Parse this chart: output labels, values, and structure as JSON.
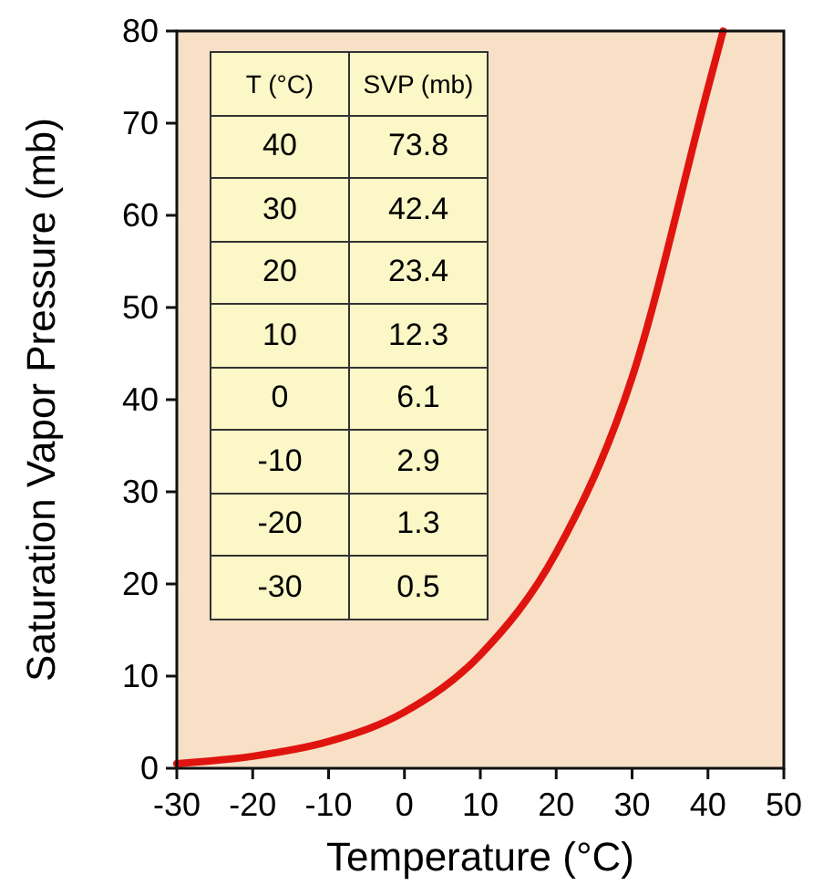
{
  "chart_data": {
    "type": "line",
    "xlabel": "Temperature (°C)",
    "ylabel": "Saturation Vapor Pressure (mb)",
    "series": [
      {
        "color": "#e0140f",
        "x": [
          -30,
          -20,
          -10,
          0,
          10,
          20,
          30,
          40,
          42
        ],
        "values": [
          0.5,
          1.3,
          2.9,
          6.1,
          12.3,
          23.4,
          42.4,
          73.8,
          80
        ]
      }
    ],
    "annotations": [
      "T (°C)",
      "SVP (mb)",
      "40",
      "73.8",
      "30",
      "42.4",
      "20",
      "23.4",
      "10",
      "12.3",
      "0",
      "6.1",
      "-10",
      "2.9",
      "-20",
      "1.3",
      "-30",
      "0.5"
    ],
    "xlim": [
      -30,
      50
    ],
    "ylim": [
      0,
      80
    ],
    "xticks": [
      -30,
      -20,
      -10,
      0,
      10,
      20,
      30,
      40,
      50
    ],
    "yticks": [
      0,
      10,
      20,
      30,
      40,
      50,
      60,
      70,
      80
    ]
  }
}
